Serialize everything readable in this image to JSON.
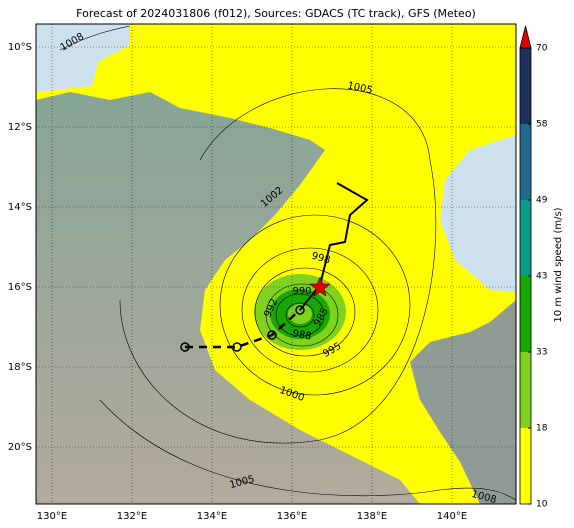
{
  "map": {
    "title": "Forecast of 2024031806 (f012), Sources: GDACS (TC track), GFS (Meteo)",
    "lon_lim": [
      129.6,
      141.6
    ],
    "lat_lim": [
      -9.425,
      -21.425
    ],
    "lon_ticks": [
      {
        "value": 130,
        "label": "130°E"
      },
      {
        "value": 132,
        "label": "132°E"
      },
      {
        "value": 134,
        "label": "134°E"
      },
      {
        "value": 136,
        "label": "136°E"
      },
      {
        "value": 138,
        "label": "138°E"
      },
      {
        "value": 140,
        "label": "140°E"
      }
    ],
    "lat_ticks": [
      {
        "value": -10,
        "label": "10°S"
      },
      {
        "value": -12,
        "label": "12°S"
      },
      {
        "value": -14,
        "label": "14°S"
      },
      {
        "value": -16,
        "label": "16°S"
      },
      {
        "value": -18,
        "label": "18°S"
      },
      {
        "value": -20,
        "label": "20°S"
      }
    ],
    "isobar_labels": [
      1008,
      1005,
      1002,
      998,
      990,
      992,
      988,
      985,
      995,
      1000,
      1005,
      1008
    ],
    "colorbar": {
      "label": "10 m wind speed (m/s)",
      "ticks": [
        10,
        18,
        33,
        43,
        49,
        58,
        70
      ],
      "colors": [
        "#ffff00",
        "#7fd21e",
        "#16a800",
        "#0a9a8a",
        "#1f6a8a",
        "#1e3060"
      ],
      "extend_color": "#e00000"
    }
  }
}
